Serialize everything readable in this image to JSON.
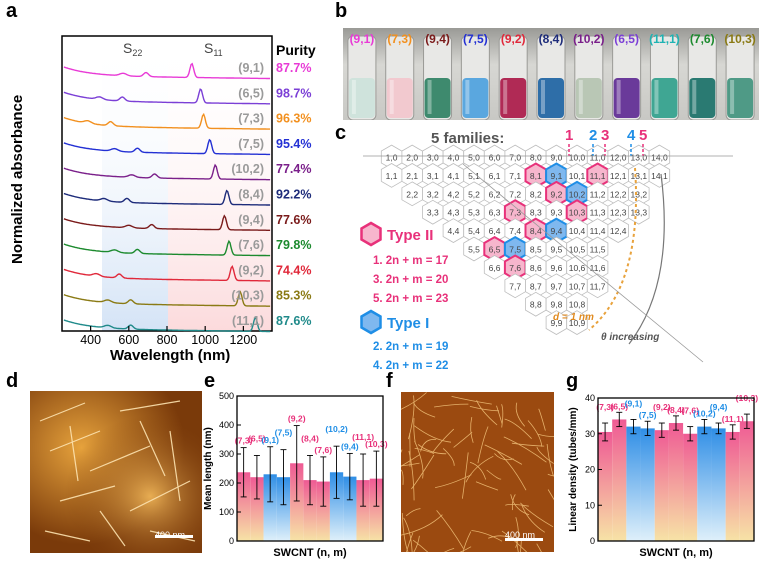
{
  "panel_labels": [
    "a",
    "b",
    "c",
    "d",
    "e",
    "f",
    "g"
  ],
  "colors": {
    "pink": "#e8317a",
    "blue": "#1f8ee6",
    "gold": "#f2c46b",
    "purity_header_color": "#000000"
  },
  "panel_a": {
    "ylabel": "Normalized absorbance",
    "xlabel": "Wavelength (nm)",
    "xticks": [
      "400",
      "600",
      "800",
      "1000",
      "1200"
    ],
    "region_labels": [
      "S22",
      "S11"
    ],
    "purity_header": "Purity",
    "rows": [
      {
        "chirality": "(9,1)",
        "purity": "87.7%",
        "color": "#e83ad6"
      },
      {
        "chirality": "(6,5)",
        "purity": "98.7%",
        "color": "#7b3fd6"
      },
      {
        "chirality": "(7,3)",
        "purity": "96.3%",
        "color": "#f2901f"
      },
      {
        "chirality": "(7,5)",
        "purity": "95.4%",
        "color": "#2330d4"
      },
      {
        "chirality": "(10,2)",
        "purity": "77.4%",
        "color": "#7a1f8a"
      },
      {
        "chirality": "(8,4)",
        "purity": "92.2%",
        "color": "#1d2b7a"
      },
      {
        "chirality": "(9,4)",
        "purity": "77.6%",
        "color": "#7a1a1a"
      },
      {
        "chirality": "(7,6)",
        "purity": "79.8%",
        "color": "#1c8a2e"
      },
      {
        "chirality": "(9,2)",
        "purity": "74.4%",
        "color": "#e0283a"
      },
      {
        "chirality": "(10,3)",
        "purity": "85.3%",
        "color": "#8a7a14"
      },
      {
        "chirality": "(11,1)",
        "purity": "87.6%",
        "color": "#1f8a8a"
      }
    ]
  },
  "panel_b": {
    "vials": [
      {
        "label": "(9,1)",
        "label_color": "#e83ad6",
        "liquid": "#cfe3dc"
      },
      {
        "label": "(7,3)",
        "label_color": "#f2901f",
        "liquid": "#f2c9cf"
      },
      {
        "label": "(9,4)",
        "label_color": "#7a1a1a",
        "liquid": "#3e8a6e"
      },
      {
        "label": "(7,5)",
        "label_color": "#2330d4",
        "liquid": "#5aa7df"
      },
      {
        "label": "(9,2)",
        "label_color": "#e0283a",
        "liquid": "#b02a55"
      },
      {
        "label": "(8,4)",
        "label_color": "#1d2b7a",
        "liquid": "#2e6ea8"
      },
      {
        "label": "(10,2)",
        "label_color": "#7a1f8a",
        "liquid": "#b9c7b5"
      },
      {
        "label": "(6,5)",
        "label_color": "#7b3fd6",
        "liquid": "#6a3a9a"
      },
      {
        "label": "(11,1)",
        "label_color": "#1fb3b3",
        "liquid": "#3fa693"
      },
      {
        "label": "(7,6)",
        "label_color": "#1c8a2e",
        "liquid": "#2a7a72"
      },
      {
        "label": "(10,3)",
        "label_color": "#8a7a14",
        "liquid": "#4f9a86"
      }
    ]
  },
  "panel_c": {
    "title": "5 families:",
    "family_numbers": [
      {
        "n": "1",
        "color": "#e8317a"
      },
      {
        "n": "2",
        "color": "#1f8ee6"
      },
      {
        "n": "3",
        "color": "#e8317a"
      },
      {
        "n": "4",
        "color": "#1f8ee6"
      },
      {
        "n": "5",
        "color": "#e8317a"
      }
    ],
    "type2": {
      "label": "Type II",
      "lines": [
        "1. 2n + m = 17",
        "3. 2n + m = 20",
        "5. 2n + m = 23"
      ]
    },
    "type1": {
      "label": "Type I",
      "lines": [
        "2. 2n + m = 19",
        "4. 2n + m = 22"
      ]
    },
    "d_label": "d = 1 nm",
    "theta_label": "θ increasing",
    "grid_rows": [
      [
        "1,0",
        "2,0",
        "3,0",
        "4,0",
        "5,0",
        "6,0",
        "7,0",
        "8,0",
        "9,0",
        "10,0",
        "11,0",
        "12,0",
        "13,0",
        "14,0"
      ],
      [
        "1,1",
        "2,1",
        "3,1",
        "4,1",
        "5,1",
        "6,1",
        "7,1",
        "8,1",
        "9,1",
        "10,1",
        "11,1",
        "12,1",
        "13,1",
        "14,1"
      ],
      [
        "2,2",
        "3,2",
        "4,2",
        "5,2",
        "6,2",
        "7,2",
        "8,2",
        "9,2",
        "10,2",
        "11,2",
        "12,2",
        "13,2"
      ],
      [
        "3,3",
        "4,3",
        "5,3",
        "6,3",
        "7,3",
        "8,3",
        "9,3",
        "10,3",
        "11,3",
        "12,3",
        "13,3"
      ],
      [
        "4,4",
        "5,4",
        "6,4",
        "7,4",
        "8,4",
        "9,4",
        "10,4",
        "11,4",
        "12,4"
      ],
      [
        "5,5",
        "6,5",
        "7,5",
        "8,5",
        "9,5",
        "10,5",
        "11,5"
      ],
      [
        "6,6",
        "7,6",
        "8,6",
        "9,6",
        "10,6",
        "11,6"
      ],
      [
        "7,7",
        "8,7",
        "9,7",
        "10,7",
        "11,7"
      ],
      [
        "8,8",
        "9,8",
        "10,8"
      ],
      [
        "9,9",
        "10,9"
      ]
    ]
  },
  "panel_d": {
    "scale_bar": "400 nm"
  },
  "panel_f": {
    "scale_bar": "400 nm"
  },
  "panel_e": {
    "ylabel": "Mean length (nm)",
    "xlabel": "SWCNT (n, m)",
    "yticks": [
      "0",
      "100",
      "200",
      "300",
      "400",
      "500"
    ]
  },
  "panel_g": {
    "ylabel": "Linear density (tubes/mm)",
    "xlabel": "SWCNT (n, m)",
    "yticks": [
      "0",
      "10",
      "20",
      "30",
      "40"
    ]
  },
  "chart_data": [
    {
      "type": "bar",
      "panel": "e",
      "ylabel": "Mean length (nm)",
      "xlabel": "SWCNT (n, m)",
      "ylim": [
        0,
        500
      ],
      "categories": [
        "(7,3)",
        "(6,5)",
        "(9,1)",
        "(7,5)",
        "(9,2)",
        "(8,4)",
        "(7,6)",
        "(10,2)",
        "(9,4)",
        "(11,1)",
        "(10,3)"
      ],
      "bar_type": [
        "II",
        "II",
        "I",
        "I",
        "II",
        "II",
        "II",
        "I",
        "I",
        "II",
        "II"
      ],
      "values": [
        237,
        220,
        230,
        220,
        268,
        210,
        205,
        237,
        222,
        210,
        215
      ],
      "errors": [
        85,
        75,
        95,
        95,
        130,
        85,
        85,
        90,
        80,
        90,
        95
      ]
    },
    {
      "type": "bar",
      "panel": "g",
      "ylabel": "Linear density (tubes/mm)",
      "xlabel": "SWCNT (n, m)",
      "ylim": [
        0,
        40
      ],
      "categories": [
        "(7,3)",
        "(6,5)",
        "(9,1)",
        "(7,5)",
        "(9,2)",
        "(8,4)",
        "(7,6)",
        "(10,2)",
        "(9,4)",
        "(11,1)",
        "(10,3)"
      ],
      "bar_type": [
        "II",
        "II",
        "I",
        "I",
        "II",
        "II",
        "II",
        "I",
        "I",
        "II",
        "II"
      ],
      "values": [
        30.5,
        34,
        32,
        31.5,
        31,
        33,
        30,
        32,
        31.5,
        30.5,
        33.5
      ],
      "errors": [
        2.5,
        2,
        2,
        2,
        2,
        2,
        2,
        2,
        1.5,
        2,
        2
      ]
    }
  ]
}
